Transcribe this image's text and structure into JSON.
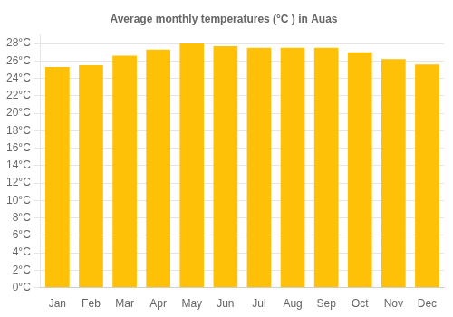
{
  "chart_data": {
    "type": "bar",
    "title": "Average monthly temperatures (°C ) in Auas",
    "categories": [
      "Jan",
      "Feb",
      "Mar",
      "Apr",
      "May",
      "Jun",
      "Jul",
      "Aug",
      "Sep",
      "Oct",
      "Nov",
      "Dec"
    ],
    "values": [
      25.3,
      25.5,
      26.6,
      27.3,
      28.0,
      27.7,
      27.5,
      27.5,
      27.5,
      27.0,
      26.2,
      25.6
    ],
    "color": "#FFC107",
    "ylim": [
      0,
      29
    ],
    "yticks": [
      {
        "value": 0,
        "label": "0°C"
      },
      {
        "value": 2,
        "label": "2°C"
      },
      {
        "value": 4,
        "label": "4°C"
      },
      {
        "value": 6,
        "label": "6°C"
      },
      {
        "value": 8,
        "label": "8°C"
      },
      {
        "value": 10,
        "label": "10°C"
      },
      {
        "value": 12,
        "label": "12°C"
      },
      {
        "value": 14,
        "label": "14°C"
      },
      {
        "value": 16,
        "label": "16°C"
      },
      {
        "value": 18,
        "label": "18°C"
      },
      {
        "value": 20,
        "label": "20°C"
      },
      {
        "value": 22,
        "label": "22°C"
      },
      {
        "value": 24,
        "label": "24°C"
      },
      {
        "value": 26,
        "label": "26°C"
      },
      {
        "value": 28,
        "label": "28°C"
      }
    ],
    "grid": true
  }
}
